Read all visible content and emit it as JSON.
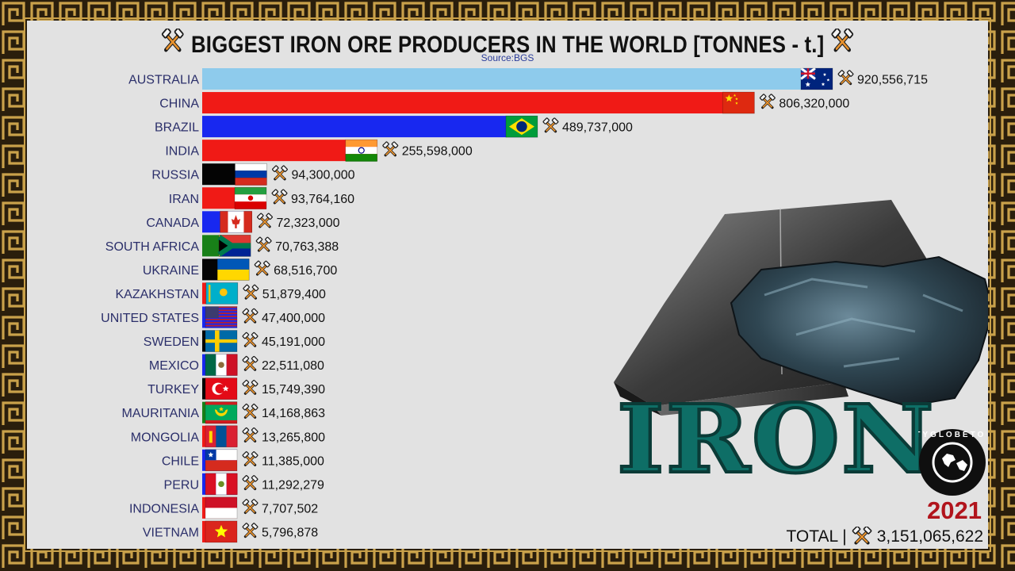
{
  "header": {
    "title": "BIGGEST IRON ORE PRODUCERS IN THE WORLD [TONNES - t.]",
    "source": "Source:BGS"
  },
  "overlay": {
    "metal_word": "IRON",
    "year": "2021",
    "total_prefix": "TOTAL |",
    "total_value": "3,151,065,622",
    "logo_text": "CITYGLOBETOUR"
  },
  "colors": {
    "border_gold": "#c9a14a",
    "border_dark": "#2a1e0c",
    "panel": "#e2e2e2",
    "country_label": "#2b2f6a",
    "iron_word": "#0e6e66",
    "year": "#b1141c"
  },
  "icons": {
    "producer_icon": "crossed-hammers-icon"
  },
  "chart_data": {
    "type": "bar",
    "orientation": "horizontal",
    "title": "BIGGEST IRON ORE PRODUCERS IN THE WORLD [TONNES - t.]",
    "xlim": [
      0,
      920556715
    ],
    "legend": "none",
    "grid": false,
    "categories": [
      "AUSTRALIA",
      "CHINA",
      "BRAZIL",
      "INDIA",
      "RUSSIA",
      "IRAN",
      "CANADA",
      "SOUTH AFRICA",
      "UKRAINE",
      "KAZAKHSTAN",
      "UNITED STATES",
      "SWEDEN",
      "MEXICO",
      "TURKEY",
      "MAURITANIA",
      "MONGOLIA",
      "CHILE",
      "PERU",
      "INDONESIA",
      "VIETNAM"
    ],
    "values": [
      920556715,
      806320000,
      489737000,
      255598000,
      94300000,
      93764160,
      72323000,
      70763388,
      68516700,
      51879400,
      47400000,
      45191000,
      22511080,
      15749390,
      14168863,
      13265800,
      11385000,
      11292279,
      7707502,
      5796878
    ],
    "value_labels": [
      "920,556,715",
      "806,320,000",
      "489,737,000",
      "255,598,000",
      "94,300,000",
      "93,764,160",
      "72,323,000",
      "70,763,388",
      "68,516,700",
      "51,879,400",
      "47,400,000",
      "45,191,000",
      "22,511,080",
      "15,749,390",
      "14,168,863",
      "13,265,800",
      "11,385,000",
      "11,292,279",
      "7,707,502",
      "5,796,878"
    ],
    "bar_colors": [
      "#8ecbec",
      "#f01a16",
      "#1828f0",
      "#f01a16",
      "#040404",
      "#f01a16",
      "#1828f0",
      "#188018",
      "#040404",
      "#f01a16",
      "#1828f0",
      "#040404",
      "#1828f0",
      "#040404",
      "#188018",
      "#f01a16",
      "#1828f0",
      "#1828f0",
      "#f01a16",
      "#f01a16"
    ],
    "flags": [
      "australia",
      "china",
      "brazil",
      "india",
      "russia",
      "iran",
      "canada",
      "south-africa",
      "ukraine",
      "kazakhstan",
      "united-states",
      "sweden",
      "mexico",
      "turkey",
      "mauritania",
      "mongolia",
      "chile",
      "peru",
      "indonesia",
      "vietnam"
    ]
  }
}
